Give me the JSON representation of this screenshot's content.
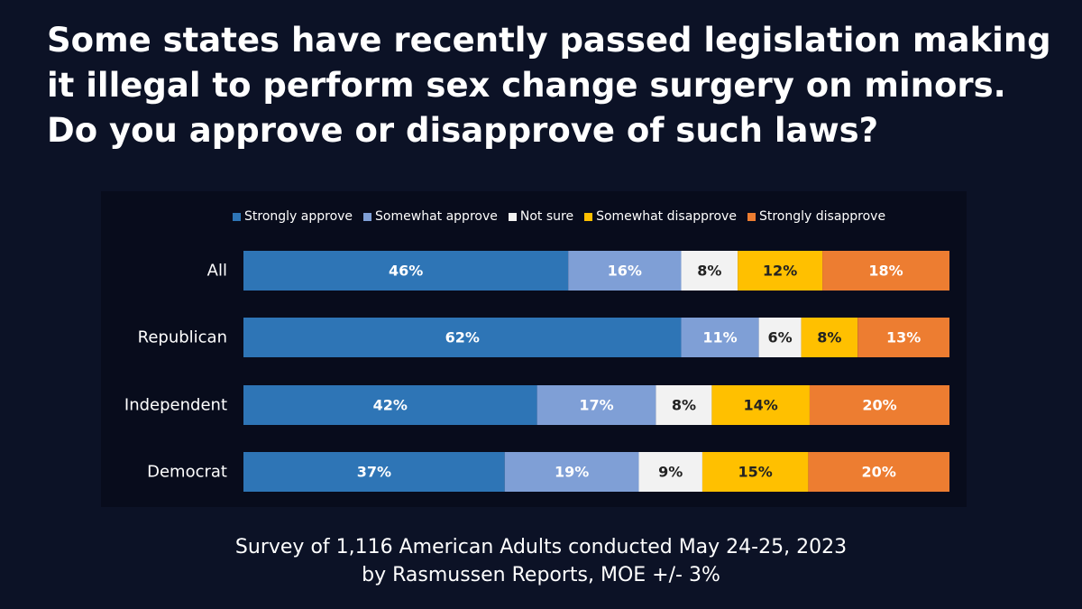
{
  "title": "Some states have recently passed legislation making it illegal to perform sex change surgery on minors.  Do you approve or disapprove of such laws?",
  "footer": {
    "line1": "Survey of 1,116 American Adults conducted May 24-25, 2023",
    "line2": "by Rasmussen Reports, MOE +/- 3%"
  },
  "chart_data": {
    "type": "bar",
    "orientation": "horizontal",
    "stacked": true,
    "categories": [
      "All",
      "Republican",
      "Independent",
      "Democrat"
    ],
    "series": [
      {
        "name": "Strongly approve",
        "color": "#2e75b6",
        "label_color": "#ffffff",
        "values": [
          46,
          62,
          42,
          37
        ]
      },
      {
        "name": "Somewhat approve",
        "color": "#7f9fd6",
        "label_color": "#ffffff",
        "values": [
          16,
          11,
          17,
          19
        ]
      },
      {
        "name": "Not sure",
        "color": "#f2f2f2",
        "label_color": "#222222",
        "values": [
          8,
          6,
          8,
          9
        ]
      },
      {
        "name": "Somewhat disapprove",
        "color": "#ffc000",
        "label_color": "#222222",
        "values": [
          12,
          8,
          14,
          15
        ]
      },
      {
        "name": "Strongly disapprove",
        "color": "#ed7d31",
        "label_color": "#ffffff",
        "values": [
          18,
          13,
          20,
          20
        ]
      }
    ],
    "value_suffix": "%",
    "legend_position": "top",
    "grid": false
  }
}
